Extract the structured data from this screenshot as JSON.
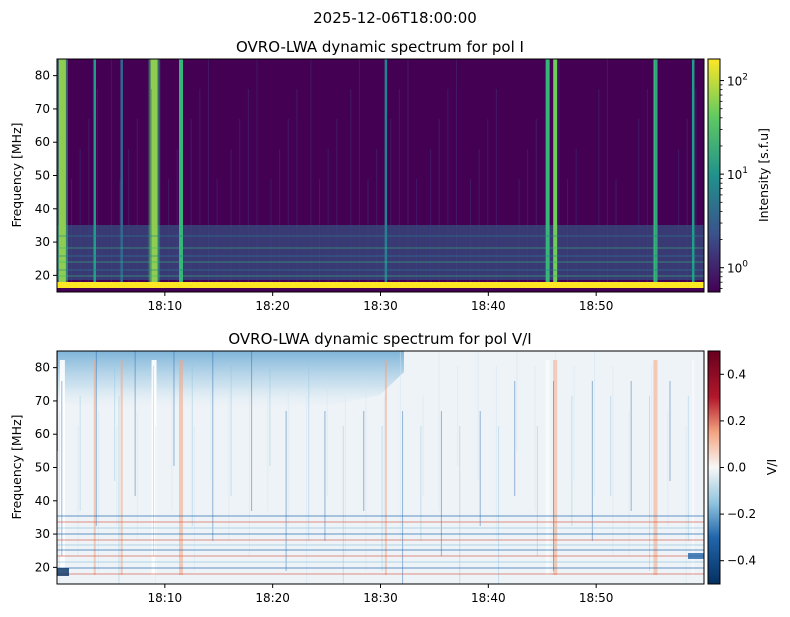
{
  "figure": {
    "suptitle": "2025-12-06T18:00:00"
  },
  "colors": {
    "viridis_low": "#440154",
    "viridis_mid": "#21918c",
    "viridis_high": "#fde725",
    "rdbu_neg": "#053061",
    "rdbu_zero": "#f7f7f7",
    "rdbu_pos": "#67001f"
  },
  "chart_data": [
    {
      "type": "heatmap",
      "title": "OVRO-LWA dynamic spectrum for pol I",
      "xlabel": "",
      "ylabel": "Frequency [MHz]",
      "x_range": [
        "18:00",
        "19:00"
      ],
      "ylim": [
        15,
        85
      ],
      "x_ticks": [
        "18:10",
        "18:20",
        "18:30",
        "18:40",
        "18:50"
      ],
      "y_ticks": [
        20,
        30,
        40,
        50,
        60,
        70,
        80
      ],
      "colorbar": {
        "label": "Intensity [s.f.u]",
        "scale": "log",
        "range": [
          0.55,
          170
        ],
        "ticks": [
          {
            "base": "10",
            "exp": "0",
            "value": 1
          },
          {
            "base": "10",
            "exp": "1",
            "value": 10
          },
          {
            "base": "10",
            "exp": "2",
            "value": 100
          }
        ],
        "colormap": "viridis"
      },
      "bursts": [
        {
          "time": "18:00.5",
          "intensity": 160
        },
        {
          "time": "18:03.5",
          "intensity": 10
        },
        {
          "time": "18:06.0",
          "intensity": 4
        },
        {
          "time": "18:09.0",
          "intensity": 150
        },
        {
          "time": "18:11.5",
          "intensity": 20
        },
        {
          "time": "18:30.5",
          "intensity": 8
        },
        {
          "time": "18:45.5",
          "intensity": 20
        },
        {
          "time": "18:46.2",
          "intensity": 40
        },
        {
          "time": "18:55.5",
          "intensity": 20
        },
        {
          "time": "18:59.0",
          "intensity": 15
        }
      ],
      "background_intensity": 0.7,
      "low_band": {
        "freq_range": [
          16,
          18
        ],
        "intensity": 150
      }
    },
    {
      "type": "heatmap",
      "title": "OVRO-LWA dynamic spectrum for pol V/I",
      "xlabel": "",
      "ylabel": "Frequency [MHz]",
      "x_range": [
        "18:00",
        "19:00"
      ],
      "ylim": [
        15,
        85
      ],
      "x_ticks": [
        "18:10",
        "18:20",
        "18:30",
        "18:40",
        "18:50"
      ],
      "y_ticks": [
        20,
        30,
        40,
        50,
        60,
        70,
        80
      ],
      "colorbar": {
        "label": "V/I",
        "scale": "linear",
        "range": [
          -0.5,
          0.5
        ],
        "ticks": [
          0.4,
          0.2,
          0.0,
          -0.2,
          -0.4
        ],
        "tick_labels": [
          "0.4",
          "0.2",
          "0.0",
          "−0.2",
          "−0.4"
        ],
        "colormap": "RdBu_r"
      }
    }
  ]
}
